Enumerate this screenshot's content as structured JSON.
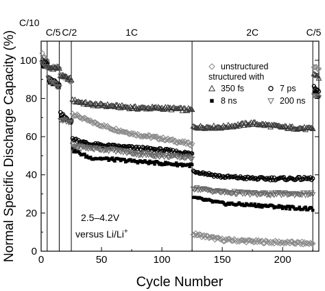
{
  "chart_data": {
    "type": "scatter",
    "xlabel": "Cycle Number",
    "ylabel": "Normal Specific Discharge Capacity (%)",
    "xlim": [
      0,
      230
    ],
    "ylim": [
      0,
      110
    ],
    "x_ticks": [
      0,
      50,
      100,
      150,
      200
    ],
    "y_ticks": [
      0,
      20,
      40,
      60,
      80,
      100
    ],
    "grid": false,
    "legend_position": "top-right",
    "legend": {
      "header1": "unstructured",
      "header2": "structured with",
      "entries": [
        {
          "marker": "diamond",
          "label": "unstructured"
        },
        {
          "marker": "triangle-up",
          "label": "350 fs"
        },
        {
          "marker": "circle",
          "label": "7 ps"
        },
        {
          "marker": "square-filled",
          "label": "8 ns"
        },
        {
          "marker": "triangle-down",
          "label": "200 ns"
        }
      ]
    },
    "rate_regions": [
      {
        "label": "C/10",
        "start": 0,
        "end": 5
      },
      {
        "label": "C/5",
        "start": 5,
        "end": 15
      },
      {
        "label": "C/2",
        "start": 15,
        "end": 25
      },
      {
        "label": "1C",
        "start": 25,
        "end": 125
      },
      {
        "label": "2C",
        "start": 125,
        "end": 225
      },
      {
        "label": "C/5",
        "start": 225,
        "end": 230
      }
    ],
    "boundaries": [
      5,
      15,
      25,
      125,
      225
    ],
    "annotation": {
      "line1": "2.5–4.2V",
      "line2_prefix": "versus Li/Li",
      "line2_sup": "+"
    },
    "series": [
      {
        "marker": "diamond",
        "trend": [
          [
            1,
            103
          ],
          [
            5,
            100
          ],
          [
            6,
            96
          ],
          [
            15,
            96
          ],
          [
            16,
            92
          ],
          [
            25,
            89
          ],
          [
            26,
            72
          ],
          [
            40,
            68
          ],
          [
            60,
            64
          ],
          [
            80,
            61
          ],
          [
            100,
            59
          ],
          [
            125,
            56
          ],
          [
            126,
            9
          ],
          [
            150,
            6
          ],
          [
            180,
            5
          ],
          [
            225,
            4
          ],
          [
            226,
            97
          ],
          [
            230,
            95
          ]
        ]
      },
      {
        "marker": "triangle-up",
        "trend": [
          [
            1,
            100
          ],
          [
            5,
            99
          ],
          [
            6,
            96
          ],
          [
            15,
            96
          ],
          [
            16,
            92
          ],
          [
            25,
            90
          ],
          [
            26,
            79
          ],
          [
            40,
            77
          ],
          [
            60,
            76
          ],
          [
            80,
            75
          ],
          [
            100,
            75
          ],
          [
            125,
            74
          ],
          [
            126,
            65
          ],
          [
            150,
            65
          ],
          [
            175,
            67
          ],
          [
            200,
            65
          ],
          [
            225,
            64
          ],
          [
            226,
            93
          ],
          [
            230,
            91
          ]
        ]
      },
      {
        "marker": "circle",
        "trend": [
          [
            1,
            99
          ],
          [
            5,
            98
          ],
          [
            6,
            91
          ],
          [
            15,
            87
          ],
          [
            16,
            72
          ],
          [
            25,
            68
          ],
          [
            26,
            59
          ],
          [
            40,
            56
          ],
          [
            60,
            55
          ],
          [
            80,
            54
          ],
          [
            100,
            53
          ],
          [
            125,
            51
          ],
          [
            126,
            42
          ],
          [
            150,
            39
          ],
          [
            180,
            38
          ],
          [
            225,
            38
          ],
          [
            226,
            86
          ],
          [
            230,
            83
          ]
        ]
      },
      {
        "marker": "square-filled",
        "trend": [
          [
            1,
            97
          ],
          [
            5,
            96
          ],
          [
            6,
            89
          ],
          [
            15,
            86
          ],
          [
            16,
            70
          ],
          [
            25,
            68
          ],
          [
            26,
            53
          ],
          [
            40,
            49
          ],
          [
            60,
            48
          ],
          [
            80,
            47
          ],
          [
            100,
            46
          ],
          [
            125,
            45
          ],
          [
            126,
            28
          ],
          [
            150,
            25
          ],
          [
            180,
            24
          ],
          [
            225,
            22
          ],
          [
            226,
            84
          ],
          [
            230,
            81
          ]
        ]
      },
      {
        "marker": "triangle-down",
        "trend": [
          [
            1,
            98
          ],
          [
            5,
            97
          ],
          [
            6,
            90
          ],
          [
            15,
            86
          ],
          [
            16,
            69
          ],
          [
            25,
            67
          ],
          [
            26,
            55
          ],
          [
            40,
            54
          ],
          [
            60,
            53
          ],
          [
            80,
            51
          ],
          [
            100,
            50
          ],
          [
            125,
            49
          ],
          [
            126,
            33
          ],
          [
            150,
            31
          ],
          [
            180,
            30
          ],
          [
            225,
            30
          ],
          [
            226,
            82
          ],
          [
            230,
            80
          ]
        ]
      }
    ]
  }
}
